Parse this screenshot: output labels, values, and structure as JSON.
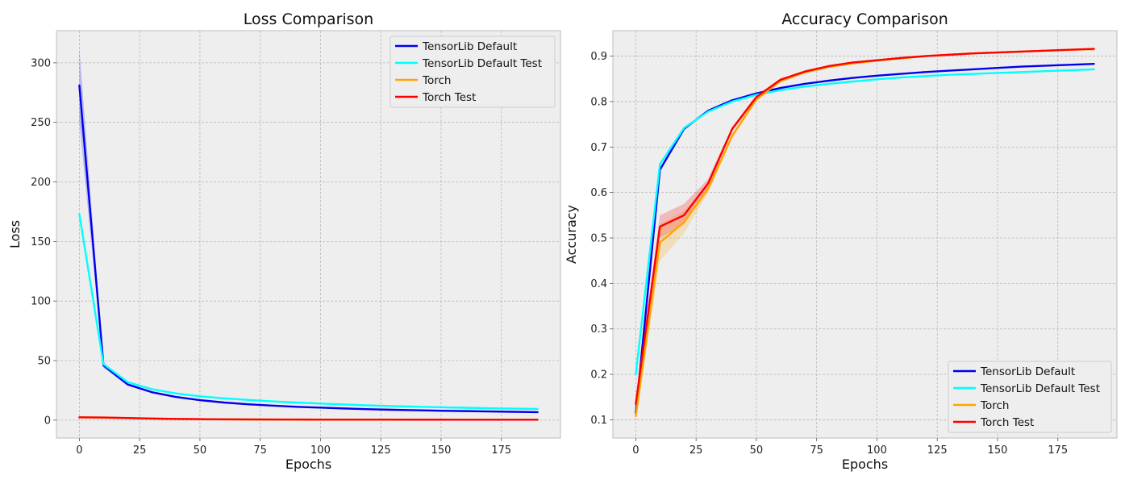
{
  "chart_data": [
    {
      "type": "line",
      "title": "Loss Comparison",
      "xlabel": "Epochs",
      "ylabel": "Loss",
      "xlim": [
        -9.5,
        199.5
      ],
      "ylim": [
        -15,
        327
      ],
      "xticks": [
        0,
        25,
        50,
        75,
        100,
        125,
        150,
        175
      ],
      "yticks": [
        0,
        50,
        100,
        150,
        200,
        250,
        300
      ],
      "grid": true,
      "legend": "top-right",
      "x": [
        0,
        10,
        20,
        30,
        40,
        50,
        60,
        70,
        80,
        90,
        100,
        110,
        120,
        130,
        140,
        150,
        160,
        170,
        180,
        190
      ],
      "series": [
        {
          "name": "TensorLib Default",
          "color": "#0000ee",
          "values": [
            281,
            46,
            30,
            23.5,
            19.5,
            16.8,
            14.8,
            13.3,
            12.2,
            11.2,
            10.5,
            9.8,
            9.2,
            8.7,
            8.3,
            7.9,
            7.6,
            7.3,
            7.0,
            6.7
          ],
          "band_low": [
            250,
            44,
            29,
            22.8,
            19,
            16.3,
            14.4,
            13,
            11.9,
            11,
            10.3,
            9.6,
            9,
            8.5,
            8.1,
            7.7,
            7.4,
            7.1,
            6.8,
            6.5
          ],
          "band_high": [
            312,
            48,
            31,
            24.2,
            20,
            17.3,
            15.2,
            13.6,
            12.5,
            11.4,
            10.7,
            10,
            9.4,
            8.9,
            8.5,
            8.1,
            7.8,
            7.5,
            7.2,
            6.9
          ]
        },
        {
          "name": "TensorLib Default Test",
          "color": "#00ffff",
          "values": [
            173,
            47,
            32,
            26,
            22.5,
            20,
            18.3,
            17,
            15.8,
            14.8,
            13.9,
            13.1,
            12.4,
            11.8,
            11.3,
            10.8,
            10.4,
            10.0,
            9.7,
            9.4
          ]
        },
        {
          "name": "Torch",
          "color": "#ffa500",
          "values": [
            2.3,
            2.1,
            1.7,
            1.3,
            1.0,
            0.8,
            0.65,
            0.55,
            0.5,
            0.45,
            0.42,
            0.4,
            0.38,
            0.37,
            0.36,
            0.35,
            0.34,
            0.34,
            0.33,
            0.33
          ]
        },
        {
          "name": "Torch Test",
          "color": "#ff0000",
          "values": [
            2.4,
            2.2,
            1.8,
            1.35,
            1.05,
            0.85,
            0.7,
            0.6,
            0.55,
            0.5,
            0.47,
            0.45,
            0.43,
            0.42,
            0.41,
            0.4,
            0.39,
            0.39,
            0.38,
            0.38
          ]
        }
      ]
    },
    {
      "type": "line",
      "title": "Accuracy Comparison",
      "xlabel": "Epochs",
      "ylabel": "Accuracy",
      "xlim": [
        -9.5,
        199.5
      ],
      "ylim": [
        0.06,
        0.956
      ],
      "xticks": [
        0,
        25,
        50,
        75,
        100,
        125,
        150,
        175
      ],
      "yticks": [
        0.1,
        0.2,
        0.3,
        0.4,
        0.5,
        0.6,
        0.7,
        0.8,
        0.9
      ],
      "grid": true,
      "legend": "bottom-right",
      "x": [
        0,
        10,
        20,
        30,
        40,
        50,
        60,
        70,
        80,
        90,
        100,
        110,
        120,
        130,
        140,
        150,
        160,
        170,
        180,
        190
      ],
      "series": [
        {
          "name": "TensorLib Default",
          "color": "#0000ee",
          "values": [
            0.115,
            0.65,
            0.74,
            0.78,
            0.803,
            0.818,
            0.83,
            0.839,
            0.846,
            0.852,
            0.857,
            0.861,
            0.865,
            0.868,
            0.871,
            0.874,
            0.877,
            0.879,
            0.881,
            0.883
          ]
        },
        {
          "name": "TensorLib Default Test",
          "color": "#00ffff",
          "values": [
            0.2,
            0.662,
            0.742,
            0.778,
            0.8,
            0.815,
            0.825,
            0.833,
            0.839,
            0.844,
            0.849,
            0.853,
            0.856,
            0.859,
            0.861,
            0.863,
            0.865,
            0.867,
            0.869,
            0.871
          ]
        },
        {
          "name": "Torch",
          "color": "#ffa500",
          "values": [
            0.108,
            0.49,
            0.535,
            0.608,
            0.725,
            0.805,
            0.845,
            0.864,
            0.876,
            0.884,
            0.89,
            0.895,
            0.9,
            0.903,
            0.906,
            0.908,
            0.91,
            0.912,
            0.914,
            0.915
          ],
          "band_low": [
            0.1,
            0.45,
            0.51,
            0.6,
            0.72,
            0.8,
            0.842,
            0.862,
            0.874,
            0.882,
            0.888,
            0.893,
            0.898,
            0.901,
            0.904,
            0.906,
            0.908,
            0.91,
            0.912,
            0.913
          ],
          "band_high": [
            0.12,
            0.53,
            0.56,
            0.615,
            0.73,
            0.81,
            0.848,
            0.866,
            0.878,
            0.886,
            0.892,
            0.897,
            0.902,
            0.905,
            0.908,
            0.91,
            0.912,
            0.914,
            0.916,
            0.917
          ]
        },
        {
          "name": "Torch Test",
          "color": "#ff0000",
          "values": [
            0.135,
            0.525,
            0.55,
            0.62,
            0.74,
            0.81,
            0.848,
            0.866,
            0.878,
            0.886,
            0.891,
            0.896,
            0.9,
            0.903,
            0.906,
            0.908,
            0.91,
            0.912,
            0.914,
            0.916
          ],
          "band_low": [
            0.125,
            0.5,
            0.53,
            0.61,
            0.735,
            0.806,
            0.845,
            0.864,
            0.876,
            0.884,
            0.889,
            0.894,
            0.898,
            0.901,
            0.904,
            0.906,
            0.908,
            0.91,
            0.912,
            0.914
          ],
          "band_high": [
            0.145,
            0.55,
            0.575,
            0.63,
            0.745,
            0.814,
            0.851,
            0.868,
            0.88,
            0.888,
            0.893,
            0.898,
            0.902,
            0.905,
            0.908,
            0.91,
            0.912,
            0.914,
            0.916,
            0.918
          ]
        }
      ]
    }
  ]
}
